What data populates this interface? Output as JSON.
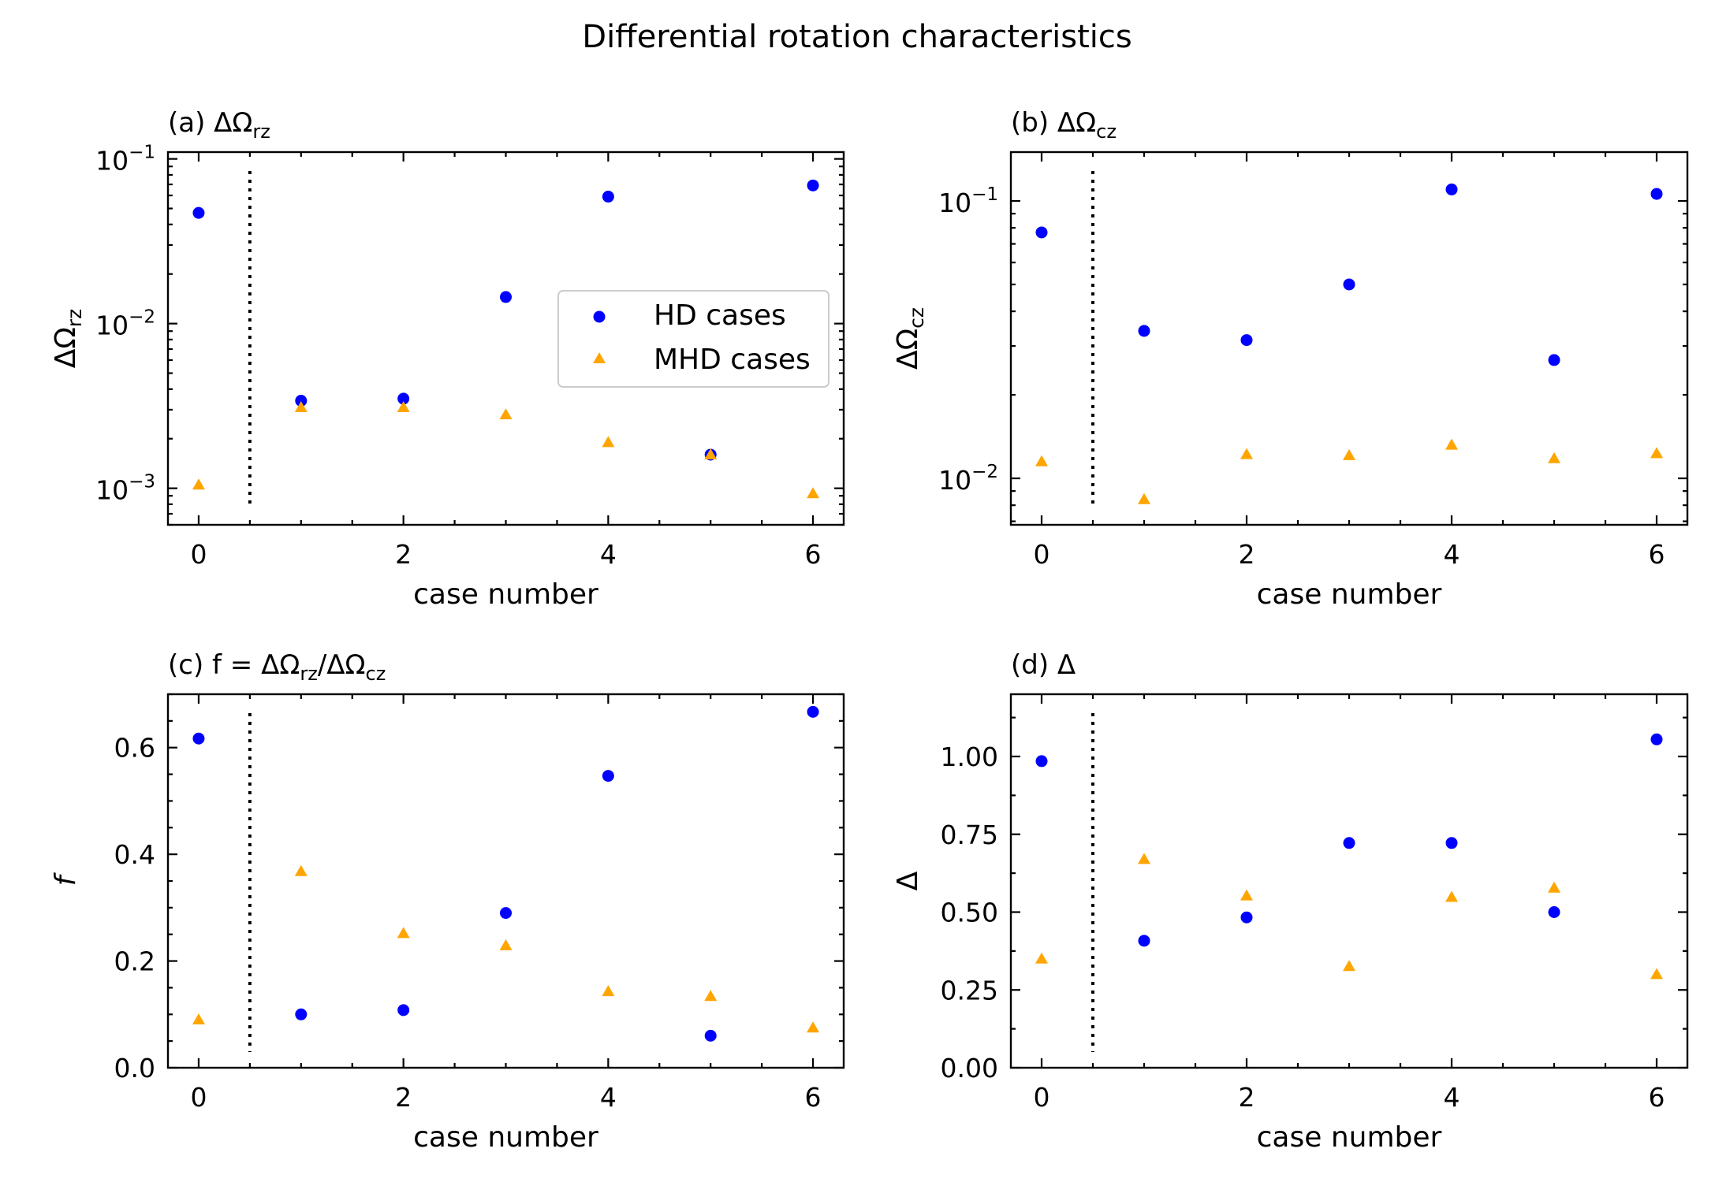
{
  "figure": {
    "title": "Differential rotation characteristics"
  },
  "legend": {
    "hd_label": "HD cases",
    "mhd_label": "MHD cases"
  },
  "colors": {
    "hd": "#0000ff",
    "mhd": "#ffa500",
    "axis": "#000000"
  },
  "chart_data": [
    {
      "type": "scatter",
      "panel": "a",
      "title_prefix": "(a) ",
      "title_math": "ΔΩ",
      "title_sub": "rz",
      "xlabel": "case number",
      "ylabel_math": "ΔΩ",
      "ylabel_sub": "rz",
      "yscale": "log",
      "xlim": [
        -0.3,
        6.3
      ],
      "ylim": [
        0.0006,
        0.11
      ],
      "xticks": [
        0,
        2,
        4,
        6
      ],
      "xtick_labels": [
        "0",
        "2",
        "4",
        "6"
      ],
      "yticks": [
        0.001,
        0.01,
        0.1
      ],
      "ytick_labels": [
        [
          "10",
          "−3"
        ],
        [
          "10",
          "−2"
        ],
        [
          "10",
          "−1"
        ]
      ],
      "divider_x": 0.5,
      "legend_position": "right",
      "series": [
        {
          "name": "HD cases",
          "marker": "circle",
          "x": [
            0,
            1,
            2,
            3,
            4,
            5,
            6
          ],
          "values": [
            0.047,
            0.0034,
            0.0035,
            0.0145,
            0.059,
            0.0016,
            0.069
          ]
        },
        {
          "name": "MHD cases",
          "marker": "triangle",
          "x": [
            0,
            1,
            2,
            3,
            4,
            5,
            6
          ],
          "values": [
            0.00105,
            0.0031,
            0.0031,
            0.0028,
            0.0019,
            0.0016,
            0.00093
          ]
        }
      ]
    },
    {
      "type": "scatter",
      "panel": "b",
      "title_prefix": "(b) ",
      "title_math": "ΔΩ",
      "title_sub": "cz",
      "xlabel": "case number",
      "ylabel_math": "ΔΩ",
      "ylabel_sub": "cz",
      "yscale": "log",
      "xlim": [
        -0.3,
        6.3
      ],
      "ylim": [
        0.0068,
        0.15
      ],
      "xticks": [
        0,
        2,
        4,
        6
      ],
      "xtick_labels": [
        "0",
        "2",
        "4",
        "6"
      ],
      "yticks": [
        0.01,
        0.1
      ],
      "ytick_labels": [
        [
          "10",
          "−2"
        ],
        [
          "10",
          "−1"
        ]
      ],
      "divider_x": 0.5,
      "series": [
        {
          "name": "HD cases",
          "marker": "circle",
          "x": [
            0,
            1,
            2,
            3,
            4,
            5,
            6
          ],
          "values": [
            0.077,
            0.034,
            0.0315,
            0.05,
            0.11,
            0.0267,
            0.106
          ]
        },
        {
          "name": "MHD cases",
          "marker": "triangle",
          "x": [
            0,
            1,
            2,
            3,
            4,
            5,
            6
          ],
          "values": [
            0.0115,
            0.0084,
            0.0122,
            0.0121,
            0.0132,
            0.0118,
            0.0123
          ]
        }
      ]
    },
    {
      "type": "scatter",
      "panel": "c",
      "title_prefix": "(c) ",
      "title_math": "f = ΔΩ",
      "title_sub": "rz",
      "title_mid": "/ΔΩ",
      "title_sub2": "cz",
      "xlabel": "case number",
      "ylabel_math": "f",
      "ylabel_sub": "",
      "yscale": "linear",
      "xlim": [
        -0.3,
        6.3
      ],
      "ylim": [
        0,
        0.7
      ],
      "xticks": [
        0,
        2,
        4,
        6
      ],
      "xtick_labels": [
        "0",
        "2",
        "4",
        "6"
      ],
      "yticks": [
        0,
        0.2,
        0.4,
        0.6
      ],
      "ytick_labels": [
        "0.0",
        "0.2",
        "0.4",
        "0.6"
      ],
      "yminor_step": 0.05,
      "divider_x": 0.5,
      "series": [
        {
          "name": "HD cases",
          "marker": "circle",
          "x": [
            0,
            1,
            2,
            3,
            4,
            5,
            6
          ],
          "values": [
            0.617,
            0.1,
            0.108,
            0.29,
            0.547,
            0.06,
            0.667
          ]
        },
        {
          "name": "MHD cases",
          "marker": "triangle",
          "x": [
            0,
            1,
            2,
            3,
            4,
            5,
            6
          ],
          "values": [
            0.09,
            0.368,
            0.252,
            0.229,
            0.143,
            0.134,
            0.075
          ]
        }
      ]
    },
    {
      "type": "scatter",
      "panel": "d",
      "title_prefix": "(d) ",
      "title_math": "Δ",
      "title_sub": "",
      "xlabel": "case number",
      "ylabel_math": "Δ",
      "ylabel_sub": "",
      "yscale": "linear",
      "xlim": [
        -0.3,
        6.3
      ],
      "ylim": [
        0,
        1.2
      ],
      "xticks": [
        0,
        2,
        4,
        6
      ],
      "xtick_labels": [
        "0",
        "2",
        "4",
        "6"
      ],
      "yticks": [
        0,
        0.25,
        0.5,
        0.75,
        1.0
      ],
      "ytick_labels": [
        "0.00",
        "0.25",
        "0.50",
        "0.75",
        "1.00"
      ],
      "yminor_step": 0.125,
      "divider_x": 0.5,
      "series": [
        {
          "name": "HD cases",
          "marker": "circle",
          "x": [
            0,
            1,
            2,
            3,
            4,
            5,
            6
          ],
          "values": [
            0.985,
            0.408,
            0.483,
            0.722,
            0.722,
            0.5,
            1.055
          ]
        },
        {
          "name": "MHD cases",
          "marker": "triangle",
          "x": [
            0,
            1,
            2,
            3,
            4,
            5,
            6
          ],
          "values": [
            0.35,
            0.67,
            0.553,
            0.326,
            0.548,
            0.578,
            0.3
          ]
        }
      ]
    }
  ]
}
